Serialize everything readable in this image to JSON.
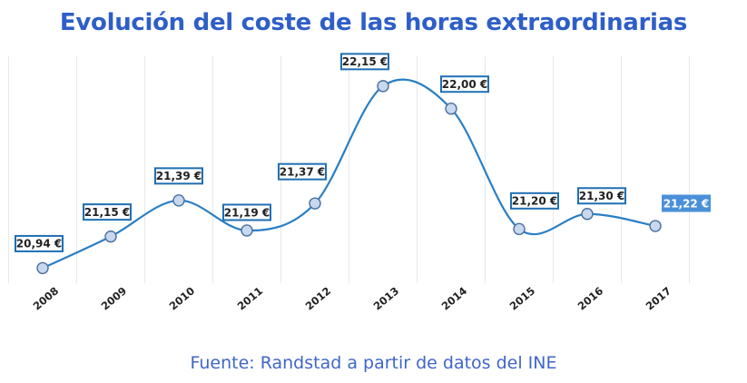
{
  "title": "Evolución del coste de las horas extraordinarias",
  "source": "Fuente: Randstad a partir de datos del INE",
  "chart_data": {
    "type": "line",
    "categories": [
      "2008",
      "2009",
      "2010",
      "2011",
      "2012",
      "2013",
      "2014",
      "2015",
      "2016",
      "2017"
    ],
    "values": [
      20.94,
      21.15,
      21.39,
      21.19,
      21.37,
      22.15,
      22.0,
      21.2,
      21.3,
      21.22
    ],
    "data_labels": [
      "20,94 €",
      "21,15 €",
      "21,39 €",
      "21,19 €",
      "21,37 €",
      "22,15 €",
      "22,00 €",
      "21,20 €",
      "21,30 €",
      "21,22 €"
    ],
    "highlighted_label_index": 9,
    "ylim": [
      20.84,
      22.3
    ],
    "xlabel": "",
    "ylabel": "",
    "grid": "vertical",
    "line_color": "#2A7FC4",
    "marker_fill": "#C8D8EE",
    "marker_stroke": "#4A6FA0",
    "label_border_color": "#1F6FB2",
    "highlight_color": "#4A90D9"
  }
}
